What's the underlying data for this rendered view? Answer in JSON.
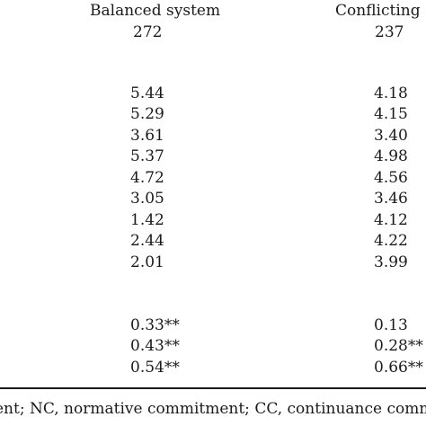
{
  "table": {
    "columns": [
      {
        "header": "Balanced system",
        "n": "272"
      },
      {
        "header": "Conflicting s",
        "n": "237"
      }
    ],
    "rows_group1": [
      [
        "5.44",
        "4.18"
      ],
      [
        "5.29",
        "4.15"
      ],
      [
        "3.61",
        "3.40"
      ],
      [
        "5.37",
        "4.98"
      ],
      [
        "4.72",
        "4.56"
      ],
      [
        "3.05",
        "3.46"
      ],
      [
        "1.42",
        "4.12"
      ],
      [
        "2.44",
        "4.22"
      ],
      [
        "2.01",
        "3.99"
      ]
    ],
    "rows_group2": [
      [
        "0.33**",
        "0.13"
      ],
      [
        "0.43**",
        "0.28**"
      ],
      [
        "0.54**",
        "0.66**"
      ]
    ],
    "footnote": "ent; NC, normative commitment; CC, continuance commitm"
  }
}
